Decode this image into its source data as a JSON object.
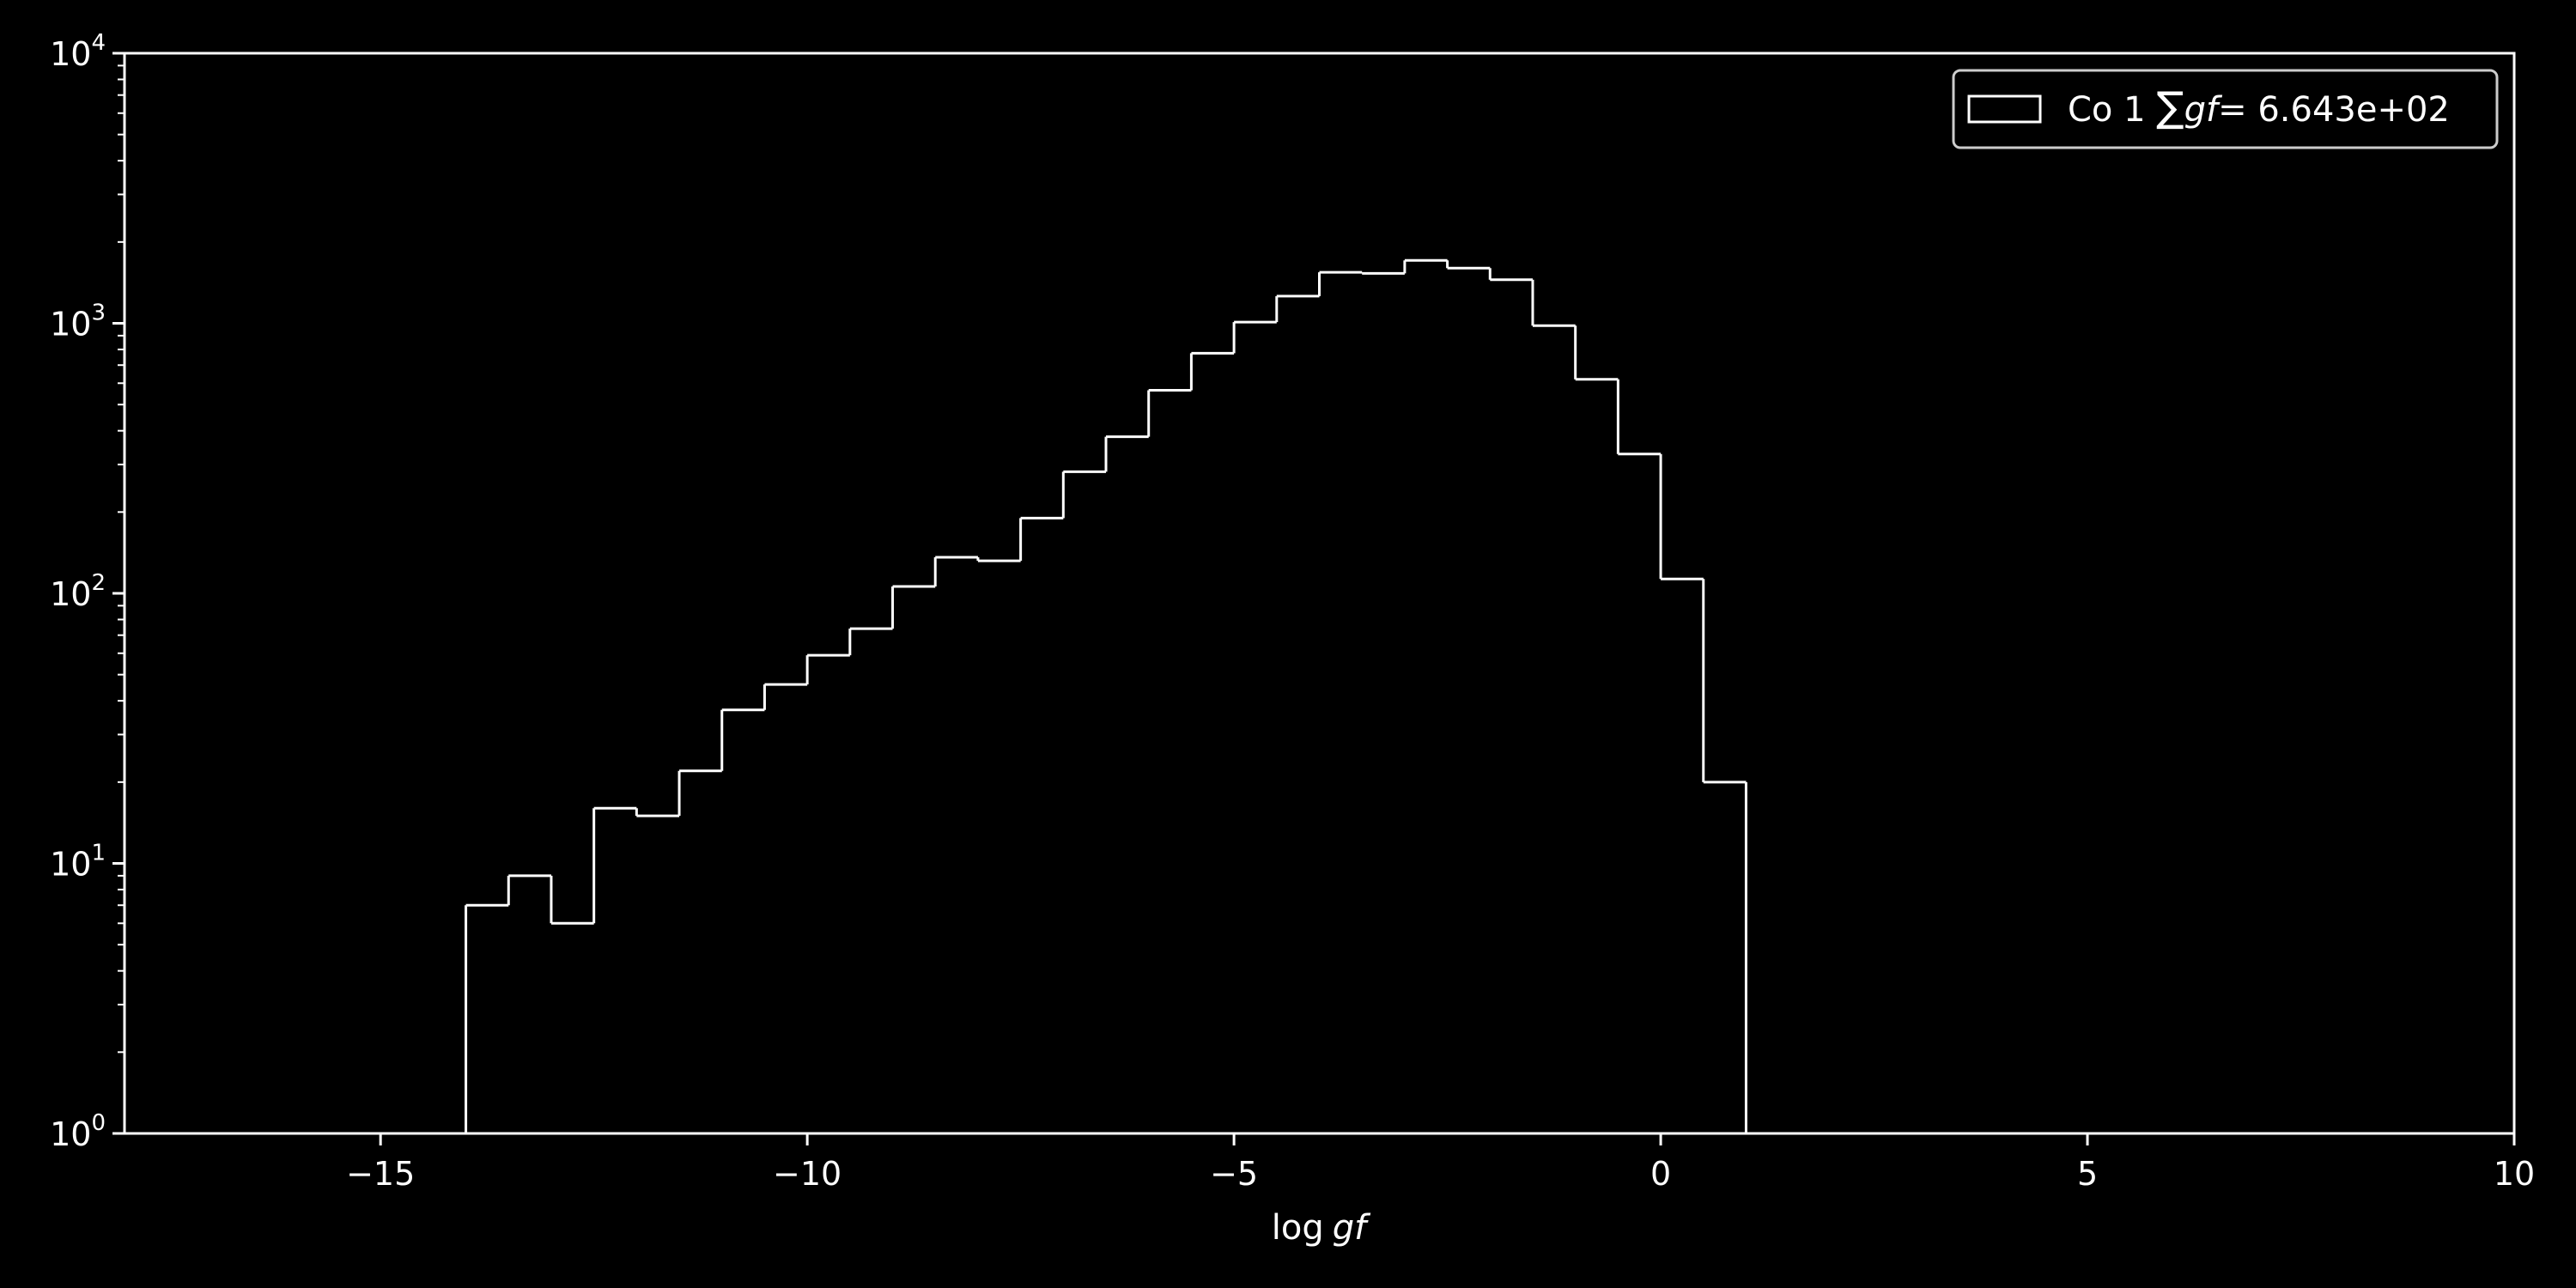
{
  "chart_data": {
    "type": "histogram",
    "xlabel": "log gf",
    "xlabel_parts": {
      "func": "log",
      "var": "gf"
    },
    "ylabel": "",
    "xlim": [
      -18,
      10
    ],
    "ylim": [
      1,
      10000
    ],
    "yscale": "log",
    "grid": false,
    "legend_position": "top-right",
    "x_ticks": [
      "−15",
      "−10",
      "−5",
      "0",
      "5",
      "10"
    ],
    "x_tick_values": [
      -15,
      -10,
      -5,
      0,
      5,
      10
    ],
    "y_ticks": [
      {
        "value": 1,
        "base": "10",
        "exp": "0"
      },
      {
        "value": 10,
        "base": "10",
        "exp": "1"
      },
      {
        "value": 100,
        "base": "10",
        "exp": "2"
      },
      {
        "value": 1000,
        "base": "10",
        "exp": "3"
      },
      {
        "value": 10000,
        "base": "10",
        "exp": "4"
      }
    ],
    "series": [
      {
        "name": "Co 1 ∑gf = 6.643e+02",
        "legend": {
          "prefix": "Co 1 ",
          "sum_symbol": "∑",
          "var": "gf",
          "suffix": "= 6.643e+02"
        },
        "bin_width": 0.5,
        "bins": [
          {
            "x": -17.0,
            "count": 1
          },
          {
            "x": -16.5,
            "count": 0
          },
          {
            "x": -16.0,
            "count": 0
          },
          {
            "x": -15.5,
            "count": 0
          },
          {
            "x": -15.0,
            "count": 0
          },
          {
            "x": -14.5,
            "count": 1
          },
          {
            "x": -14.0,
            "count": 7
          },
          {
            "x": -13.5,
            "count": 9
          },
          {
            "x": -13.0,
            "count": 6
          },
          {
            "x": -12.5,
            "count": 16
          },
          {
            "x": -12.0,
            "count": 15
          },
          {
            "x": -11.5,
            "count": 22
          },
          {
            "x": -11.0,
            "count": 37
          },
          {
            "x": -10.5,
            "count": 46
          },
          {
            "x": -10.0,
            "count": 59
          },
          {
            "x": -9.5,
            "count": 74
          },
          {
            "x": -9.0,
            "count": 106
          },
          {
            "x": -8.5,
            "count": 136
          },
          {
            "x": -8.0,
            "count": 132
          },
          {
            "x": -7.5,
            "count": 190
          },
          {
            "x": -7.0,
            "count": 282
          },
          {
            "x": -6.5,
            "count": 380
          },
          {
            "x": -6.0,
            "count": 565
          },
          {
            "x": -5.5,
            "count": 775
          },
          {
            "x": -5.0,
            "count": 1010
          },
          {
            "x": -4.5,
            "count": 1260
          },
          {
            "x": -4.0,
            "count": 1545
          },
          {
            "x": -3.5,
            "count": 1530
          },
          {
            "x": -3.0,
            "count": 1710
          },
          {
            "x": -2.5,
            "count": 1600
          },
          {
            "x": -2.0,
            "count": 1450
          },
          {
            "x": -1.5,
            "count": 980
          },
          {
            "x": -1.0,
            "count": 620
          },
          {
            "x": -0.5,
            "count": 328
          },
          {
            "x": 0.0,
            "count": 113
          },
          {
            "x": 0.5,
            "count": 20
          }
        ]
      }
    ]
  },
  "colors": {
    "background": "#000000",
    "foreground": "#ffffff"
  }
}
